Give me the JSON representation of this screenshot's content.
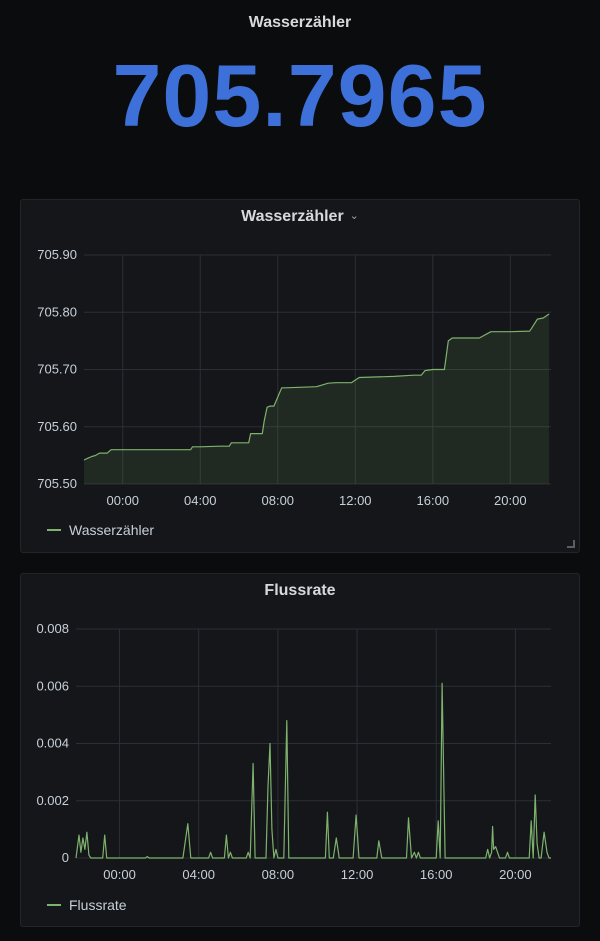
{
  "stat": {
    "title": "Wasserzähler",
    "value": "705.7965",
    "color": "#3d71d9"
  },
  "line_color": "#7eb26d",
  "panels": [
    {
      "title": "Wasserzähler",
      "legend": "Wasserzähler"
    },
    {
      "title": "Flussrate",
      "legend": "Flussrate"
    }
  ],
  "chart_data": [
    {
      "type": "area",
      "title": "Wasserzähler",
      "x_tick_labels": [
        "00:00",
        "04:00",
        "08:00",
        "12:00",
        "16:00",
        "20:00"
      ],
      "x_tick_hours": [
        0,
        4,
        8,
        12,
        16,
        20
      ],
      "xlim": [
        -2.0,
        22.1
      ],
      "ylim": [
        705.5,
        705.9
      ],
      "y_ticks": [
        705.5,
        705.6,
        705.7,
        705.8,
        705.9
      ],
      "y_tick_labels": [
        "705.50",
        "705.60",
        "705.70",
        "705.80",
        "705.90"
      ],
      "grid": true,
      "legend_position": "bottom-left",
      "series": [
        {
          "name": "Wasserzähler",
          "x": [
            -2.0,
            -1.8,
            -1.6,
            -1.4,
            -1.2,
            -0.8,
            -0.6,
            0.0,
            1.0,
            2.0,
            3.0,
            3.5,
            3.6,
            4.0,
            5.0,
            5.5,
            5.6,
            6.5,
            6.6,
            7.2,
            7.3,
            7.45,
            7.6,
            7.8,
            8.2,
            8.4,
            10.0,
            10.6,
            11.0,
            11.8,
            12.2,
            14.0,
            15.0,
            15.4,
            15.6,
            16.0,
            16.6,
            16.8,
            17.0,
            18.4,
            19.0,
            20.0,
            21.0,
            21.1,
            21.4,
            21.7,
            22.0
          ],
          "y": [
            705.542,
            705.545,
            705.548,
            705.55,
            705.554,
            705.554,
            705.56,
            705.56,
            705.56,
            705.56,
            705.56,
            705.56,
            705.565,
            705.565,
            705.566,
            705.566,
            705.572,
            705.572,
            705.588,
            705.588,
            705.61,
            705.634,
            705.636,
            705.636,
            705.668,
            705.668,
            705.67,
            705.676,
            705.677,
            705.677,
            705.686,
            705.688,
            705.69,
            705.69,
            705.698,
            705.7,
            705.7,
            705.75,
            705.755,
            705.755,
            705.766,
            705.766,
            705.767,
            705.772,
            705.788,
            705.79,
            705.797
          ]
        }
      ]
    },
    {
      "type": "line",
      "title": "Flussrate",
      "x_tick_labels": [
        "00:00",
        "04:00",
        "08:00",
        "12:00",
        "16:00",
        "20:00"
      ],
      "x_tick_hours": [
        0,
        4,
        8,
        12,
        16,
        20
      ],
      "xlim": [
        -2.2,
        21.8
      ],
      "ylim": [
        0,
        0.008
      ],
      "y_ticks": [
        0,
        0.002,
        0.004,
        0.006,
        0.008
      ],
      "y_tick_labels": [
        "0",
        "0.002",
        "0.004",
        "0.006",
        "0.008"
      ],
      "grid": true,
      "legend_position": "bottom-left",
      "series": [
        {
          "name": "Flussrate",
          "x": [
            -2.2,
            -2.05,
            -1.95,
            -1.85,
            -1.75,
            -1.65,
            -1.55,
            -1.45,
            -1.35,
            -1.2,
            -1.0,
            -0.85,
            -0.75,
            -0.65,
            0.0,
            1.0,
            1.3,
            1.4,
            1.5,
            2.0,
            3.2,
            3.45,
            3.6,
            4.0,
            4.5,
            4.6,
            4.7,
            5.0,
            5.3,
            5.4,
            5.5,
            5.6,
            5.7,
            6.0,
            6.4,
            6.5,
            6.6,
            6.75,
            6.85,
            7.0,
            7.4,
            7.5,
            7.6,
            7.7,
            7.8,
            7.9,
            8.0,
            8.3,
            8.45,
            8.55,
            8.6,
            9.5,
            10.4,
            10.5,
            10.6,
            10.8,
            10.95,
            11.1,
            11.5,
            11.8,
            11.95,
            12.1,
            13.0,
            13.1,
            13.25,
            13.4,
            14.5,
            14.6,
            14.75,
            14.9,
            15.0,
            15.1,
            15.2,
            15.5,
            16.0,
            16.1,
            16.2,
            16.3,
            16.45,
            16.55,
            16.65,
            17.0,
            18.5,
            18.6,
            18.7,
            18.8,
            18.85,
            18.9,
            19.0,
            19.2,
            19.5,
            19.6,
            19.7,
            20.0,
            20.7,
            20.8,
            20.9,
            21.0,
            21.1,
            21.2,
            21.3,
            21.45,
            21.6,
            21.7,
            21.8
          ],
          "y": [
            0,
            0.0008,
            0.0002,
            0.0007,
            0.0003,
            0.0009,
            0.0001,
            0,
            0,
            0,
            0,
            0,
            0.0008,
            0,
            0,
            0,
            0,
            5e-05,
            0,
            0,
            0,
            0.0012,
            0,
            0,
            0,
            0.0002,
            0,
            0,
            0,
            0.0008,
            0,
            0.0002,
            0,
            0,
            0,
            0.0002,
            0,
            0.0033,
            0,
            0,
            0,
            0.0025,
            0.004,
            0.001,
            0,
            0.0003,
            0,
            0,
            0.0048,
            0,
            0,
            0,
            0,
            0.0016,
            0,
            0,
            0.0007,
            0,
            0,
            0,
            0.0015,
            0,
            0,
            0.0006,
            0,
            0,
            0,
            0.0014,
            0,
            0.0002,
            0,
            0.0002,
            0,
            0,
            0,
            0.0013,
            0,
            0.0061,
            0,
            0,
            0,
            0,
            0,
            0.0003,
            0,
            0.0002,
            0.0011,
            0.0003,
            0.0004,
            0,
            0,
            0.0002,
            0,
            0,
            0,
            0.0013,
            0,
            0.0022,
            0.0005,
            0,
            0,
            0.0009,
            0.0002,
            0,
            0
          ]
        }
      ]
    }
  ]
}
